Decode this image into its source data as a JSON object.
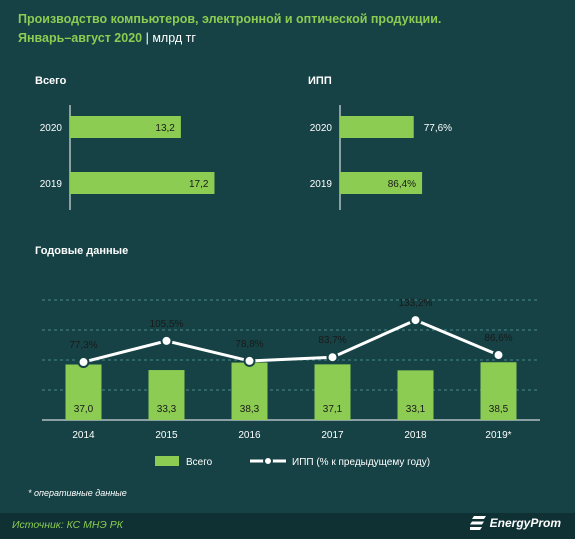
{
  "header": {
    "title": "Производство компьютеров, электронной и оптической продукции.",
    "subtitle": "Январь–август 2020",
    "separator": " | ",
    "unit": "млрд тг"
  },
  "colors": {
    "bar": "#8ccc52",
    "line": "#ffffff",
    "background": "#164245",
    "accent": "#8ccc52"
  },
  "chart_data": [
    {
      "type": "bar",
      "orientation": "horizontal",
      "title": "Всего",
      "categories": [
        "2020",
        "2019"
      ],
      "values": [
        13.2,
        17.2
      ],
      "value_labels": [
        "13,2",
        "17,2"
      ],
      "xlim": [
        0,
        25
      ]
    },
    {
      "type": "bar",
      "orientation": "horizontal",
      "title": "ИПП",
      "categories": [
        "2020",
        "2019"
      ],
      "values": [
        77.6,
        86.4
      ],
      "value_labels": [
        "77,6%",
        "86,4%"
      ],
      "xlim": [
        0,
        200
      ]
    },
    {
      "type": "bar+line",
      "title": "Годовые данные",
      "categories": [
        "2014",
        "2015",
        "2016",
        "2017",
        "2018",
        "2019*"
      ],
      "series": [
        {
          "name": "Всего",
          "type": "bar",
          "values": [
            37.0,
            33.3,
            38.3,
            37.1,
            33.1,
            38.5
          ],
          "value_labels": [
            "37,0",
            "33,3",
            "38,3",
            "37,1",
            "33,1",
            "38,5"
          ]
        },
        {
          "name": "ИПП (% к предыдущему году)",
          "type": "line",
          "values": [
            77.3,
            105.5,
            78.8,
            83.7,
            133.2,
            86.6
          ],
          "value_labels": [
            "77,3%",
            "105,5%",
            "78,8%",
            "83,7%",
            "133,2%",
            "86,6%"
          ]
        }
      ],
      "grid": true,
      "legend": "bottom"
    }
  ],
  "footnote": "* оперативные данные",
  "footer": {
    "source": "Источник: КС МНЭ РК",
    "logo": "EnergyProm",
    "logo_icon": "energyprom-logo-icon"
  }
}
